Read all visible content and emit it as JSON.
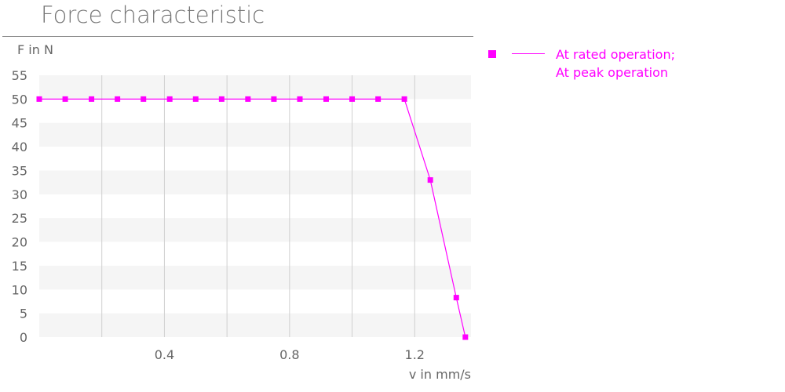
{
  "title": "Force characteristic",
  "chart_data": {
    "type": "line",
    "title": "Force characteristic",
    "xlabel": "v in mm/s",
    "ylabel": "F in N",
    "xlim": [
      0,
      1.38
    ],
    "ylim": [
      0,
      55
    ],
    "xticks": [
      0.4,
      0.8,
      1.2
    ],
    "xtick_labels": [
      "0.4",
      "0.8",
      "1.2"
    ],
    "yticks": [
      0,
      5,
      10,
      15,
      20,
      25,
      30,
      35,
      40,
      45,
      50,
      55
    ],
    "ytick_labels": [
      "0",
      "5",
      "10",
      "15",
      "20",
      "25",
      "30",
      "35",
      "40",
      "45",
      "50",
      "55"
    ],
    "grid": true,
    "legend_position": "right",
    "series": [
      {
        "name": [
          "At rated operation;",
          "At peak operation"
        ],
        "color": "#ff00ff",
        "marker": "square",
        "x": [
          0,
          0.083,
          0.167,
          0.25,
          0.333,
          0.417,
          0.5,
          0.583,
          0.667,
          0.75,
          0.833,
          0.917,
          1.0,
          1.083,
          1.167,
          1.25,
          1.333,
          1.362
        ],
        "y": [
          50,
          50,
          50,
          50,
          50,
          50,
          50,
          50,
          50,
          50,
          50,
          50,
          50,
          50,
          50,
          33,
          8.3,
          0
        ]
      }
    ]
  }
}
